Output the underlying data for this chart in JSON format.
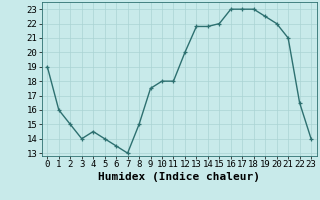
{
  "x": [
    0,
    1,
    2,
    3,
    4,
    5,
    6,
    7,
    8,
    9,
    10,
    11,
    12,
    13,
    14,
    15,
    16,
    17,
    18,
    19,
    20,
    21,
    22,
    23
  ],
  "y": [
    19,
    16,
    15,
    14,
    14.5,
    14,
    13.5,
    13,
    15,
    17.5,
    18,
    18,
    20,
    21.8,
    21.8,
    22,
    23,
    23,
    23,
    22.5,
    22,
    21,
    16.5,
    14
  ],
  "line_color": "#2d7070",
  "bg_color": "#c8eaea",
  "grid_color": "#aad4d4",
  "xlabel": "Humidex (Indice chaleur)",
  "xlabel_fontsize": 8,
  "tick_fontsize": 6.5,
  "ylim": [
    12.8,
    23.5
  ],
  "xlim": [
    -0.5,
    23.5
  ],
  "yticks": [
    13,
    14,
    15,
    16,
    17,
    18,
    19,
    20,
    21,
    22,
    23
  ],
  "xticks": [
    0,
    1,
    2,
    3,
    4,
    5,
    6,
    7,
    8,
    9,
    10,
    11,
    12,
    13,
    14,
    15,
    16,
    17,
    18,
    19,
    20,
    21,
    22,
    23
  ],
  "marker": "+",
  "markersize": 3.5,
  "linewidth": 1.0
}
